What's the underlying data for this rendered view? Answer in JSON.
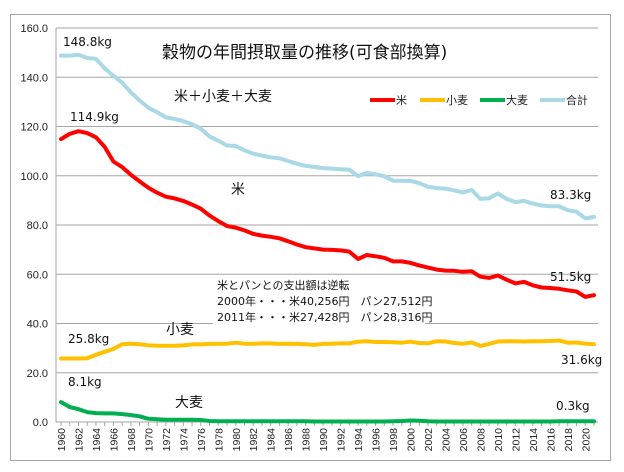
{
  "chart_data": {
    "type": "line",
    "title": "穀物の年間摂取量の推移(可食部換算)",
    "xlabel": "",
    "ylabel": "",
    "ylim": [
      0,
      160
    ],
    "yticks": [
      "0.0",
      "20.0",
      "40.0",
      "60.0",
      "80.0",
      "100.0",
      "120.0",
      "140.0",
      "160.0"
    ],
    "ytick_values": [
      0,
      20,
      40,
      60,
      80,
      100,
      120,
      140,
      160
    ],
    "x": [
      1960,
      1961,
      1962,
      1963,
      1964,
      1965,
      1966,
      1967,
      1968,
      1969,
      1970,
      1971,
      1972,
      1973,
      1974,
      1975,
      1976,
      1977,
      1978,
      1979,
      1980,
      1981,
      1982,
      1983,
      1984,
      1985,
      1986,
      1987,
      1988,
      1989,
      1990,
      1991,
      1992,
      1993,
      1994,
      1995,
      1996,
      1997,
      1998,
      1999,
      2000,
      2001,
      2002,
      2003,
      2004,
      2005,
      2006,
      2007,
      2008,
      2009,
      2010,
      2011,
      2012,
      2013,
      2014,
      2015,
      2016,
      2017,
      2018,
      2019,
      2020,
      2021
    ],
    "xtick_labels": [
      "1960",
      "1962",
      "1964",
      "1966",
      "1968",
      "1970",
      "1972",
      "1974",
      "1976",
      "1978",
      "1980",
      "1982",
      "1984",
      "1986",
      "1988",
      "1990",
      "1992",
      "1994",
      "1996",
      "1998",
      "2000",
      "2002",
      "2004",
      "2006",
      "2008",
      "2010",
      "2012",
      "2014",
      "2016",
      "2018",
      "2020"
    ],
    "grid": true,
    "legend_position": "top-right",
    "series": [
      {
        "name": "米",
        "color": "#ff0000",
        "values": [
          114.9,
          117.0,
          118.1,
          117.3,
          115.6,
          111.7,
          105.8,
          103.5,
          100.4,
          97.7,
          95.1,
          93.1,
          91.5,
          90.8,
          89.8,
          88.3,
          86.6,
          83.8,
          81.6,
          79.6,
          78.9,
          77.8,
          76.4,
          75.7,
          75.2,
          74.6,
          73.4,
          72.1,
          71.0,
          70.5,
          70.0,
          69.9,
          69.7,
          69.2,
          66.2,
          67.8,
          67.3,
          66.7,
          65.2,
          65.2,
          64.6,
          63.6,
          62.7,
          61.9,
          61.5,
          61.4,
          61.0,
          61.2,
          59.0,
          58.5,
          59.5,
          57.8,
          56.3,
          56.9,
          55.5,
          54.6,
          54.4,
          54.1,
          53.5,
          53.0,
          50.8,
          51.5
        ]
      },
      {
        "name": "小麦",
        "color": "#ffc000",
        "values": [
          25.8,
          25.8,
          25.8,
          25.9,
          27.3,
          28.5,
          29.7,
          31.6,
          31.8,
          31.6,
          31.1,
          31.0,
          31.0,
          31.0,
          31.1,
          31.5,
          31.5,
          31.7,
          31.7,
          31.8,
          32.2,
          31.8,
          31.7,
          31.9,
          31.9,
          31.7,
          31.8,
          31.7,
          31.6,
          31.3,
          31.7,
          31.8,
          31.9,
          31.9,
          32.6,
          32.8,
          32.5,
          32.5,
          32.4,
          32.2,
          32.6,
          32.1,
          31.9,
          32.8,
          32.7,
          32.1,
          31.8,
          32.3,
          30.9,
          31.7,
          32.7,
          32.8,
          32.8,
          32.7,
          32.8,
          32.8,
          32.9,
          33.1,
          32.2,
          32.3,
          31.8,
          31.6
        ]
      },
      {
        "name": "大麦",
        "color": "#00b050",
        "values": [
          8.1,
          6.1,
          5.2,
          4.0,
          3.6,
          3.5,
          3.5,
          3.2,
          2.8,
          2.3,
          1.3,
          1.1,
          0.9,
          0.9,
          0.9,
          0.9,
          0.8,
          0.4,
          0.3,
          0.3,
          0.3,
          0.3,
          0.3,
          0.3,
          0.3,
          0.3,
          0.3,
          0.3,
          0.3,
          0.2,
          0.2,
          0.2,
          0.2,
          0.2,
          0.2,
          0.2,
          0.2,
          0.2,
          0.3,
          0.4,
          0.6,
          0.5,
          0.3,
          0.2,
          0.2,
          0.2,
          0.2,
          0.2,
          0.2,
          0.2,
          0.2,
          0.2,
          0.2,
          0.2,
          0.2,
          0.2,
          0.2,
          0.3,
          0.3,
          0.3,
          0.3,
          0.3
        ]
      },
      {
        "name": "合計",
        "color": "#a9d8e6",
        "values": [
          148.8,
          148.8,
          149.1,
          147.8,
          147.5,
          143.6,
          140.6,
          137.8,
          133.8,
          130.6,
          127.6,
          125.8,
          123.7,
          123.1,
          122.2,
          120.9,
          119.1,
          116.0,
          114.2,
          112.3,
          112.1,
          110.3,
          109.0,
          108.2,
          107.5,
          107.1,
          106.0,
          104.9,
          104.0,
          103.6,
          103.1,
          102.9,
          102.6,
          102.5,
          99.8,
          101.2,
          100.6,
          99.8,
          98.0,
          98.0,
          97.9,
          97.0,
          95.5,
          95.0,
          94.8,
          94.1,
          93.2,
          94.2,
          90.6,
          90.9,
          92.8,
          90.6,
          89.3,
          89.8,
          88.7,
          87.9,
          87.6,
          87.6,
          86.0,
          85.4,
          82.7,
          83.3
        ]
      }
    ],
    "annotations": {
      "total_start": "148.8kg",
      "rice_start": "114.9kg",
      "wheat_start": "25.8kg",
      "barley_start": "8.1kg",
      "total_end": "83.3kg",
      "rice_end": "51.5kg",
      "wheat_end": "31.6kg",
      "barley_end": "0.3kg",
      "total_label": "米＋小麦＋大麦",
      "rice_label": "米",
      "wheat_label": "小麦",
      "barley_label": "大麦",
      "note_lines": [
        "米とパンとの支出額は逆転",
        "2000年・・・米40,256円　パン27,512円",
        "2011年・・・米27,428円　パン28,316円"
      ]
    }
  }
}
